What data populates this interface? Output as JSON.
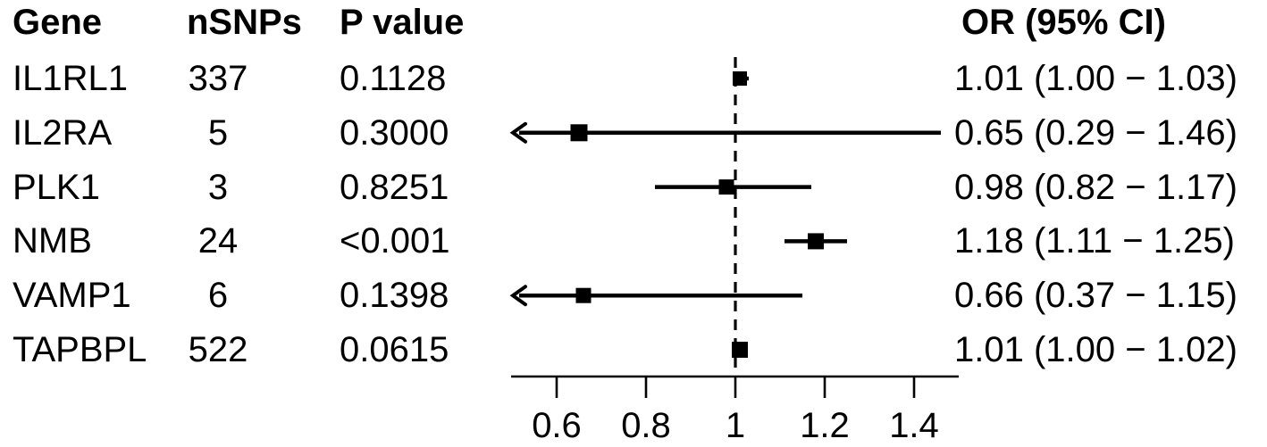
{
  "figure": {
    "background": "#ffffff",
    "foreground": "#000000"
  },
  "table": {
    "headers": {
      "gene": "Gene",
      "nsnps": "nSNPs",
      "pvalue": "P value",
      "or_ci": "OR (95% CI)"
    },
    "rows": [
      {
        "gene": "IL1RL1",
        "nsnps": "337",
        "pvalue": "0.1128",
        "or_ci": "1.01 (1.00 − 1.03)"
      },
      {
        "gene": "IL2RA",
        "nsnps": "5",
        "pvalue": "0.3000",
        "or_ci": "0.65 (0.29 − 1.46)"
      },
      {
        "gene": "PLK1",
        "nsnps": "3",
        "pvalue": "0.8251",
        "or_ci": "0.98 (0.82 − 1.17)"
      },
      {
        "gene": "NMB",
        "nsnps": "24",
        "pvalue": "<0.001",
        "or_ci": "1.18 (1.11 − 1.25)"
      },
      {
        "gene": "VAMP1",
        "nsnps": "6",
        "pvalue": "0.1398",
        "or_ci": "0.66 (0.37 − 1.15)"
      },
      {
        "gene": "TAPBPL",
        "nsnps": "522",
        "pvalue": "0.0615",
        "or_ci": "1.01 (1.00 − 1.02)"
      }
    ]
  },
  "chart_data": {
    "type": "forest",
    "xlabel": "",
    "ylabel": "",
    "xlim": [
      0.5,
      1.5
    ],
    "xticks": [
      0.6,
      0.8,
      1,
      1.2,
      1.4
    ],
    "xtick_labels": [
      "0.6",
      "0.8",
      "1",
      "1.2",
      "1.4"
    ],
    "reference_line": 1,
    "reference_style": "dashed",
    "grid": false,
    "legend": "none",
    "marker": "filled-square",
    "series": [
      {
        "label": "IL1RL1",
        "nsnps": 337,
        "pvalue": "0.1128",
        "or": 1.01,
        "ci_low": 1.0,
        "ci_high": 1.03,
        "clip_low": false
      },
      {
        "label": "IL2RA",
        "nsnps": 5,
        "pvalue": "0.3000",
        "or": 0.65,
        "ci_low": 0.29,
        "ci_high": 1.46,
        "clip_low": true
      },
      {
        "label": "PLK1",
        "nsnps": 3,
        "pvalue": "0.8251",
        "or": 0.98,
        "ci_low": 0.82,
        "ci_high": 1.17,
        "clip_low": false
      },
      {
        "label": "NMB",
        "nsnps": 24,
        "pvalue": "<0.001",
        "or": 1.18,
        "ci_low": 1.11,
        "ci_high": 1.25,
        "clip_low": false
      },
      {
        "label": "VAMP1",
        "nsnps": 6,
        "pvalue": "0.1398",
        "or": 0.66,
        "ci_low": 0.37,
        "ci_high": 1.15,
        "clip_low": true
      },
      {
        "label": "TAPBPL",
        "nsnps": 522,
        "pvalue": "0.0615",
        "or": 1.01,
        "ci_low": 1.0,
        "ci_high": 1.02,
        "clip_low": false
      }
    ]
  }
}
